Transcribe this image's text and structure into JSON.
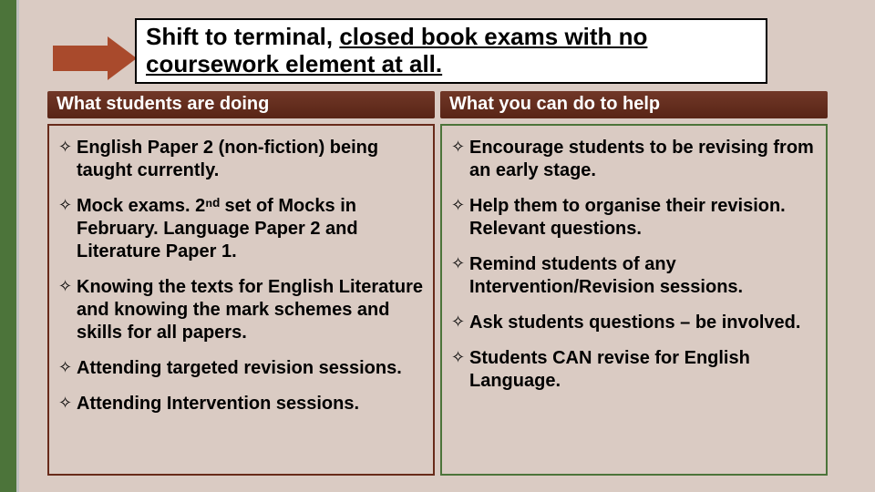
{
  "colors": {
    "leftbar": "#4c743a",
    "background": "#dacbc3",
    "arrow": "#a94a2c",
    "header_bg": "#682b1a",
    "col_border_left": "#682b1a",
    "col_border_right": "#4c743a"
  },
  "title": {
    "plain": "Shift to terminal, ",
    "underlined": "closed book exams with no coursework element at all."
  },
  "headers": {
    "left": "What students are doing",
    "right": "What you can do to help"
  },
  "left_items": [
    "English Paper 2 (non-fiction) being taught currently.",
    "Mock exams. 2ⁿᵈ set of Mocks in February. Language Paper 2 and Literature Paper 1.",
    "Knowing the texts for English Literature and knowing the mark schemes and skills for all papers.",
    "Attending targeted revision sessions.",
    "Attending Intervention sessions."
  ],
  "right_items": [
    "Encourage  students to be revising from an early stage.",
    "Help them to organise their revision. Relevant questions.",
    "Remind students of any Intervention/Revision sessions.",
    "Ask students questions – be involved.",
    "Students CAN revise for English Language."
  ],
  "bullet_glyph": "✧"
}
